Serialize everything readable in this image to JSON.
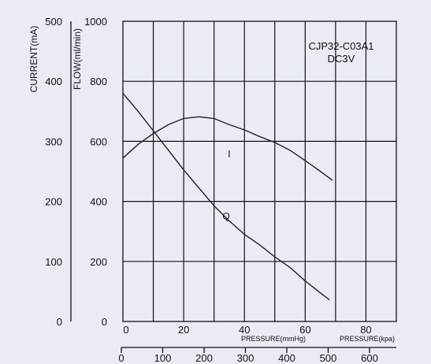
{
  "chart_data": {
    "type": "line",
    "annotation": [
      "CJP32-C03A1",
      "DC3V"
    ],
    "ylabel_left": "CURRENT(mA)",
    "ylabel_right": "FLOW(ml/min)",
    "xlabel_mmhg": "PRESSURE(mmHg)",
    "xlabel_kpa": "PRESSURE(kpa)",
    "current_axis": {
      "range": [
        0,
        500
      ],
      "ticks": [
        "0",
        "100",
        "200",
        "300",
        "400",
        "500"
      ]
    },
    "flow_axis": {
      "range": [
        0,
        1000
      ],
      "ticks": [
        "0",
        "200",
        "400",
        "600",
        "800",
        "1000"
      ]
    },
    "mmhg_axis": {
      "range": [
        0,
        90
      ],
      "ticks": [
        {
          "value": 0,
          "label": "0"
        },
        {
          "value": 20,
          "label": "20"
        },
        {
          "value": 40,
          "label": "40"
        },
        {
          "value": 60,
          "label": "60"
        },
        {
          "value": 80,
          "label": "80"
        }
      ]
    },
    "kpa_axis_ticks": [
      "0",
      "100",
      "200",
      "300",
      "400",
      "500",
      "600"
    ],
    "grid": true,
    "series": [
      {
        "name": "I",
        "axis": "current",
        "x": [
          0,
          5,
          10,
          15,
          20,
          25,
          30,
          35,
          40,
          45,
          50,
          55,
          60,
          65,
          69
        ],
        "y": [
          272,
          295,
          313,
          328,
          338,
          341,
          338,
          328,
          319,
          308,
          298,
          285,
          268,
          250,
          235
        ]
      },
      {
        "name": "Q",
        "axis": "flow",
        "x": [
          0,
          5,
          10,
          15,
          20,
          25,
          30,
          35,
          40,
          45,
          50,
          55,
          60,
          65,
          68
        ],
        "y": [
          760,
          700,
          635,
          570,
          505,
          445,
          385,
          335,
          290,
          255,
          215,
          180,
          135,
          95,
          72
        ]
      }
    ]
  }
}
